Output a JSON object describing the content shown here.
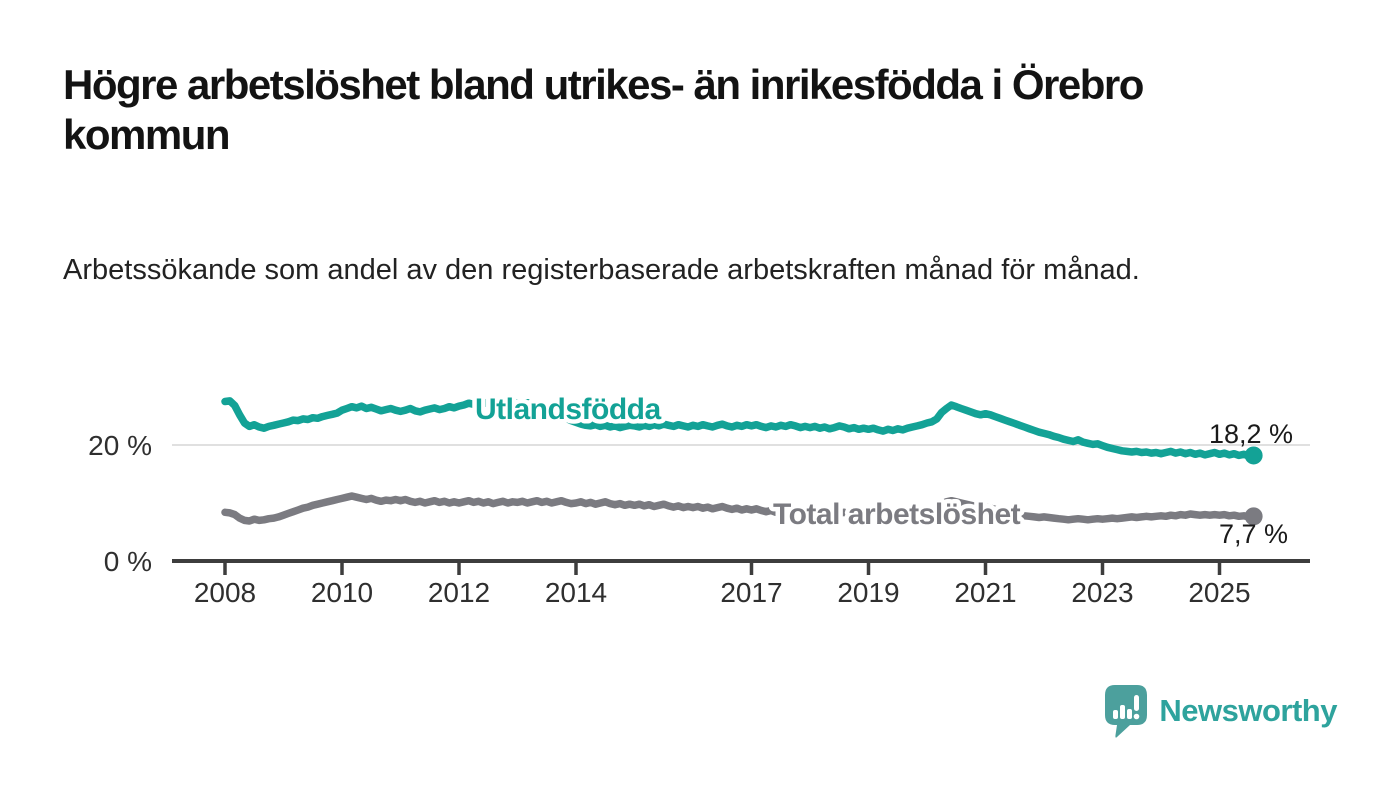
{
  "header": {
    "title": "Högre arbetslöshet bland utrikes- än inrikesfödda i Örebro kommun",
    "subtitle": "Arbetssökande som andel av den registerbaserade arbetskraften månad för månad."
  },
  "footer": {
    "brand": "Newsworthy",
    "logo_icon": "newsworthy-speech-bubble-bar-chart-icon"
  },
  "colors": {
    "series_foreign_born": "#13a296",
    "series_total": "#7b7b81",
    "axis": "#3d3d3d",
    "gridline": "#e0e0e0",
    "tick_text": "#2f2f2f",
    "value_label_text": "#1a1a1a",
    "logo_teal": "#4ca09d",
    "brand_text_teal": "#2ea39d"
  },
  "chart_data": {
    "type": "line",
    "unit": "%",
    "frequency": "monthly",
    "x_start_year": 2008,
    "x_end_label_implied": "2025",
    "ylim": [
      0,
      30
    ],
    "grid": "single-gridline-at-20",
    "legend": "inline-series-labels",
    "x_ticks": [
      "2008",
      "2010",
      "2012",
      "2014",
      "2017",
      "2019",
      "2021",
      "2023",
      "2025"
    ],
    "y_ticks": [
      {
        "value": 0,
        "label": "0 %"
      },
      {
        "value": 20,
        "label": "20 %"
      }
    ],
    "series": [
      {
        "name": "Utlandsfödda",
        "color": "#13a296",
        "end_label": "18,2 %",
        "end_value": 18.2,
        "values": [
          27.5,
          27.6,
          26.8,
          25.2,
          23.8,
          23.2,
          23.5,
          23.1,
          22.9,
          23.2,
          23.4,
          23.6,
          23.8,
          24.0,
          24.3,
          24.2,
          24.5,
          24.4,
          24.7,
          24.6,
          24.9,
          25.1,
          25.3,
          25.5,
          26.0,
          26.3,
          26.6,
          26.4,
          26.7,
          26.3,
          26.5,
          26.2,
          25.9,
          26.1,
          26.3,
          26.0,
          25.8,
          26.0,
          26.3,
          25.9,
          25.7,
          26.0,
          26.2,
          26.4,
          26.1,
          26.3,
          26.6,
          26.4,
          26.7,
          26.9,
          27.2,
          27.0,
          27.3,
          27.1,
          27.4,
          27.2,
          27.0,
          27.3,
          27.1,
          27.4,
          27.2,
          27.0,
          27.3,
          27.1,
          26.8,
          26.5,
          26.2,
          25.8,
          25.4,
          25.0,
          24.6,
          24.2,
          23.9,
          23.6,
          23.4,
          23.3,
          23.5,
          23.2,
          23.4,
          23.1,
          23.3,
          23.0,
          23.2,
          23.4,
          23.3,
          23.1,
          23.4,
          23.2,
          23.5,
          23.3,
          23.6,
          23.4,
          23.2,
          23.5,
          23.3,
          23.1,
          23.4,
          23.2,
          23.5,
          23.3,
          23.1,
          23.4,
          23.6,
          23.3,
          23.1,
          23.4,
          23.2,
          23.5,
          23.3,
          23.5,
          23.2,
          23.0,
          23.3,
          23.1,
          23.4,
          23.2,
          23.5,
          23.3,
          23.0,
          23.2,
          23.0,
          23.2,
          22.9,
          23.1,
          22.8,
          23.0,
          23.3,
          23.1,
          22.8,
          23.0,
          22.7,
          22.9,
          22.7,
          22.9,
          22.6,
          22.4,
          22.7,
          22.5,
          22.8,
          22.6,
          22.9,
          23.1,
          23.3,
          23.5,
          23.8,
          24.0,
          24.5,
          25.6,
          26.3,
          26.9,
          26.6,
          26.3,
          26.0,
          25.7,
          25.4,
          25.2,
          25.4,
          25.2,
          24.9,
          24.6,
          24.3,
          24.0,
          23.7,
          23.4,
          23.1,
          22.8,
          22.5,
          22.2,
          22.0,
          21.8,
          21.5,
          21.3,
          21.0,
          20.8,
          20.6,
          20.9,
          20.5,
          20.3,
          20.1,
          20.2,
          19.9,
          19.6,
          19.4,
          19.2,
          19.0,
          18.9,
          18.8,
          18.9,
          18.7,
          18.8,
          18.6,
          18.7,
          18.5,
          18.7,
          18.9,
          18.6,
          18.8,
          18.5,
          18.7,
          18.4,
          18.6,
          18.3,
          18.5,
          18.7,
          18.4,
          18.6,
          18.3,
          18.5,
          18.2,
          18.4,
          18.1,
          18.2
        ]
      },
      {
        "name": "Total arbetslöshet",
        "color": "#7b7b81",
        "end_label": "7,7 %",
        "end_value": 7.7,
        "values": [
          8.4,
          8.3,
          8.0,
          7.4,
          7.0,
          6.9,
          7.2,
          7.0,
          7.1,
          7.3,
          7.4,
          7.6,
          7.9,
          8.2,
          8.5,
          8.8,
          9.1,
          9.3,
          9.6,
          9.8,
          10.0,
          10.2,
          10.4,
          10.6,
          10.8,
          11.0,
          11.2,
          11.0,
          10.8,
          10.6,
          10.8,
          10.5,
          10.3,
          10.5,
          10.4,
          10.6,
          10.4,
          10.6,
          10.3,
          10.1,
          10.3,
          10.0,
          10.2,
          10.4,
          10.1,
          10.3,
          10.0,
          10.2,
          10.0,
          10.2,
          10.4,
          10.1,
          10.3,
          10.0,
          10.2,
          9.9,
          10.1,
          10.3,
          10.0,
          10.2,
          10.1,
          10.3,
          10.0,
          10.2,
          10.4,
          10.1,
          10.3,
          10.0,
          10.2,
          10.4,
          10.1,
          9.9,
          10.0,
          10.2,
          9.9,
          10.1,
          9.8,
          10.0,
          10.2,
          9.9,
          9.7,
          9.9,
          9.6,
          9.8,
          9.6,
          9.8,
          9.5,
          9.7,
          9.4,
          9.6,
          9.8,
          9.5,
          9.3,
          9.5,
          9.2,
          9.4,
          9.2,
          9.4,
          9.1,
          9.3,
          9.0,
          9.2,
          9.4,
          9.1,
          8.9,
          9.1,
          8.8,
          9.0,
          8.8,
          9.0,
          8.7,
          8.5,
          8.7,
          8.4,
          8.6,
          8.8,
          8.5,
          8.7,
          8.4,
          8.6,
          8.4,
          8.6,
          8.3,
          8.1,
          8.3,
          8.0,
          8.2,
          8.4,
          8.1,
          8.3,
          8.0,
          8.2,
          8.0,
          8.2,
          7.9,
          7.7,
          7.9,
          7.6,
          7.8,
          8.0,
          7.7,
          7.9,
          8.1,
          8.3,
          8.5,
          8.7,
          9.2,
          9.8,
          10.2,
          10.4,
          10.2,
          10.0,
          9.8,
          9.6,
          9.4,
          9.2,
          9.3,
          9.1,
          8.9,
          8.7,
          8.5,
          8.3,
          8.1,
          7.9,
          7.8,
          7.7,
          7.6,
          7.5,
          7.6,
          7.5,
          7.4,
          7.3,
          7.2,
          7.1,
          7.2,
          7.3,
          7.2,
          7.1,
          7.2,
          7.3,
          7.2,
          7.3,
          7.4,
          7.3,
          7.4,
          7.5,
          7.6,
          7.5,
          7.6,
          7.7,
          7.6,
          7.7,
          7.8,
          7.7,
          7.9,
          7.8,
          8.0,
          7.9,
          8.1,
          8.0,
          7.9,
          8.0,
          7.9,
          8.0,
          7.9,
          8.0,
          7.8,
          7.9,
          7.7,
          7.8,
          7.6,
          7.7
        ]
      }
    ]
  }
}
